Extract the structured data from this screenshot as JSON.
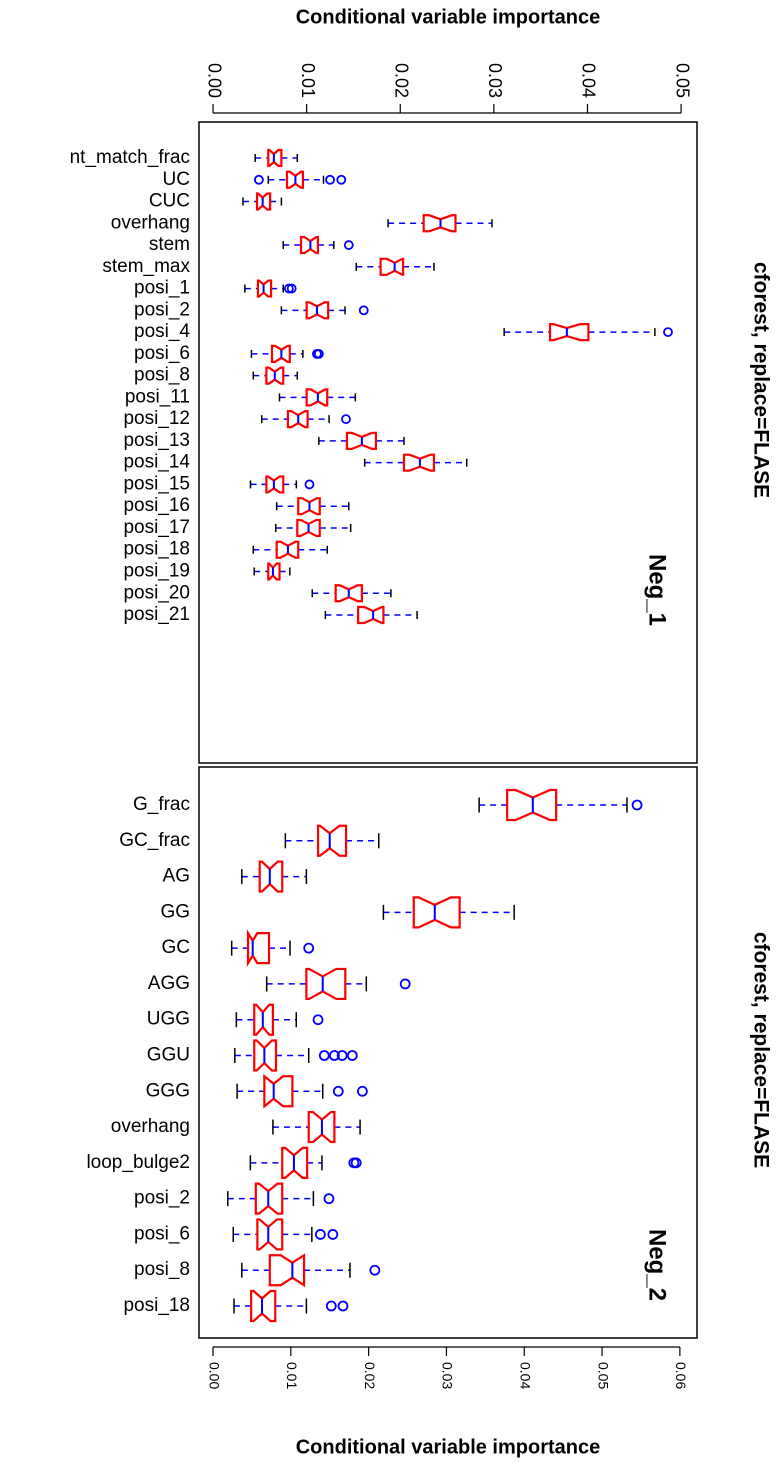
{
  "chart_data": [
    {
      "type": "boxplot",
      "title": "cforest, replace=FLASE",
      "panel_label": "Neg_1",
      "xlabel": "Conditional variable importance",
      "xaxis_position": "top",
      "box_color": "#ff0000",
      "median_color": "#0000ff",
      "whisker_color": "#0000ff",
      "outlier_color": "#0000ff",
      "notch": true,
      "xlim": [
        -0.0015,
        0.0517
      ],
      "xticks": [
        {
          "value": 0,
          "label": "0.00"
        },
        {
          "value": 0.01,
          "label": "0.01"
        },
        {
          "value": 0.02,
          "label": "0.02"
        },
        {
          "value": 0.03,
          "label": "0.03"
        },
        {
          "value": 0.04,
          "label": "0.04"
        },
        {
          "value": 0.05,
          "label": "0.05"
        }
      ],
      "categories": [
        "nt_match_frac",
        "UC",
        "CUC",
        "overhang",
        "stem",
        "stem_max",
        "posi_1",
        "posi_2",
        "posi_4",
        "posi_6",
        "posi_8",
        "posi_11",
        "posi_12",
        "posi_13",
        "posi_14",
        "posi_15",
        "posi_16",
        "posi_17",
        "posi_18",
        "posi_19",
        "posi_20",
        "posi_21"
      ],
      "whisker_low": [
        0.0045,
        0.0059,
        0.0032,
        0.0187,
        0.0075,
        0.0153,
        0.0034,
        0.0073,
        0.0311,
        0.0041,
        0.0043,
        0.0071,
        0.0052,
        0.0113,
        0.0162,
        0.004,
        0.0068,
        0.0067,
        0.0043,
        0.0044,
        0.0106,
        0.012
      ],
      "q1": [
        0.0059,
        0.0079,
        0.0047,
        0.0225,
        0.0094,
        0.0179,
        0.0048,
        0.01,
        0.036,
        0.0063,
        0.0057,
        0.01,
        0.008,
        0.0143,
        0.0204,
        0.0057,
        0.0091,
        0.009,
        0.0068,
        0.0059,
        0.0131,
        0.0155
      ],
      "median": [
        0.0065,
        0.0088,
        0.0053,
        0.0243,
        0.0104,
        0.0194,
        0.0054,
        0.0111,
        0.0378,
        0.0073,
        0.0066,
        0.0112,
        0.0091,
        0.0159,
        0.0221,
        0.0065,
        0.0103,
        0.0102,
        0.008,
        0.0064,
        0.0145,
        0.0171
      ],
      "q3": [
        0.0073,
        0.0096,
        0.0061,
        0.0259,
        0.0112,
        0.0203,
        0.0062,
        0.0123,
        0.0401,
        0.0082,
        0.0075,
        0.0122,
        0.0101,
        0.0174,
        0.0236,
        0.0075,
        0.0114,
        0.0114,
        0.0091,
        0.0071,
        0.0159,
        0.0182
      ],
      "whisker_high": [
        0.009,
        0.0118,
        0.0073,
        0.0298,
        0.0129,
        0.0236,
        0.0075,
        0.0141,
        0.0472,
        0.0096,
        0.009,
        0.0152,
        0.0124,
        0.0204,
        0.0271,
        0.0089,
        0.0145,
        0.0147,
        0.0122,
        0.0082,
        0.019,
        0.0218
      ],
      "outliers": [
        [],
        [
          0.0049,
          0.0125,
          0.0137
        ],
        [],
        [],
        [
          0.0145
        ],
        [],
        [
          0.0081,
          0.0084
        ],
        [
          0.0161
        ],
        [
          0.0486
        ],
        [
          0.0111,
          0.0113
        ],
        [],
        [],
        [
          0.0142
        ],
        [],
        [],
        [
          0.0103
        ],
        [],
        [],
        [],
        [],
        [],
        []
      ]
    },
    {
      "type": "boxplot",
      "title": "cforest, replace=FLASE",
      "panel_label": "Neg_2",
      "xlabel": "Conditional variable importance",
      "xaxis_position": "bottom",
      "box_color": "#ff0000",
      "median_color": "#0000ff",
      "whisker_color": "#0000ff",
      "outlier_color": "#0000ff",
      "notch": true,
      "xlim": [
        -0.0018,
        0.0622
      ],
      "xticks": [
        {
          "value": 0,
          "label": "0.00"
        },
        {
          "value": 0.01,
          "label": "0.01"
        },
        {
          "value": 0.02,
          "label": "0.02"
        },
        {
          "value": 0.03,
          "label": "0.03"
        },
        {
          "value": 0.04,
          "label": "0.04"
        },
        {
          "value": 0.05,
          "label": "0.05"
        },
        {
          "value": 0.06,
          "label": "0.06"
        }
      ],
      "categories": [
        "G_frac",
        "GC_frac",
        "AG",
        "GG",
        "GC",
        "AGG",
        "UGG",
        "GGU",
        "GGG",
        "overhang",
        "loop_bulge2",
        "posi_2",
        "posi_6",
        "posi_8",
        "posi_18"
      ],
      "whisker_low": [
        0.0342,
        0.0093,
        0.0037,
        0.0219,
        0.0024,
        0.0069,
        0.003,
        0.0028,
        0.0031,
        0.0077,
        0.0048,
        0.0019,
        0.0026,
        0.0037,
        0.0027
      ],
      "q1": [
        0.0378,
        0.0135,
        0.006,
        0.0258,
        0.0045,
        0.012,
        0.0053,
        0.0053,
        0.0066,
        0.0123,
        0.0089,
        0.0055,
        0.0057,
        0.0073,
        0.0049
      ],
      "median": [
        0.0411,
        0.015,
        0.0073,
        0.0285,
        0.0051,
        0.0141,
        0.0064,
        0.0066,
        0.0078,
        0.014,
        0.0104,
        0.0071,
        0.0071,
        0.0102,
        0.0063
      ],
      "q3": [
        0.0441,
        0.0171,
        0.0089,
        0.0317,
        0.0072,
        0.017,
        0.0077,
        0.0081,
        0.0102,
        0.0156,
        0.0121,
        0.0089,
        0.0089,
        0.0117,
        0.008
      ],
      "whisker_high": [
        0.0532,
        0.0213,
        0.012,
        0.0387,
        0.0099,
        0.0197,
        0.0107,
        0.0123,
        0.0141,
        0.0189,
        0.014,
        0.0129,
        0.0127,
        0.0176,
        0.012
      ],
      "outliers": [
        [
          0.0545
        ],
        [],
        [],
        [],
        [
          0.0123
        ],
        [
          0.0247
        ],
        [
          0.0135
        ],
        [
          0.0143,
          0.0156,
          0.0166,
          0.0179
        ],
        [
          0.0161,
          0.0192
        ],
        [],
        [
          0.0181,
          0.0184
        ],
        [
          0.0149
        ],
        [
          0.0138,
          0.0154
        ],
        [
          0.0208
        ],
        [
          0.0152,
          0.0167
        ]
      ]
    }
  ]
}
